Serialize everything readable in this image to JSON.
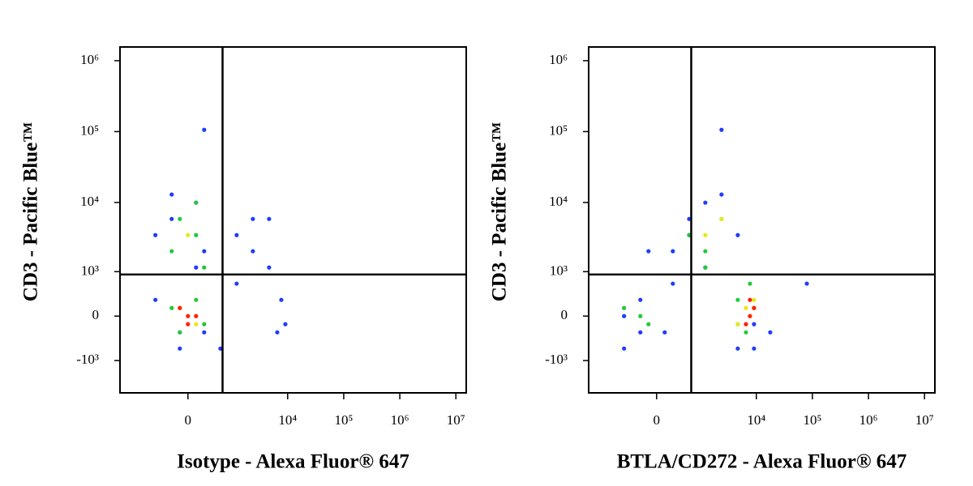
{
  "chart_data": [
    {
      "type": "scatter",
      "x_label": "Isotype - Alexa Fluor® 647",
      "y_label": "CD3 - Pacific Blue™",
      "xscale": "biexponential",
      "yscale": "biexponential",
      "xlim": [
        -2700,
        15300000
      ],
      "ylim": [
        -3000,
        1560000
      ],
      "xticks": [
        0,
        {
          "value": 10000,
          "label": "10⁴"
        },
        {
          "value": 100000,
          "label": "10⁵"
        },
        {
          "value": 1000000,
          "label": "10⁶"
        },
        {
          "value": 10000000,
          "label": "10⁷"
        }
      ],
      "yticks": [
        {
          "value": -1000,
          "label": "-10³"
        },
        0,
        {
          "value": 1000,
          "label": "10³"
        },
        {
          "value": 10000,
          "label": "10⁴"
        },
        {
          "value": 100000,
          "label": "10⁵"
        },
        {
          "value": 1000000,
          "label": "10⁶"
        }
      ],
      "gates": {
        "x": 650,
        "y": 900
      },
      "series": [
        {
          "color": "#1f3cff",
          "x": [
            -590,
            -239,
            113,
            239,
            590,
            -113,
            -590,
            239,
            1208,
            2384,
            4660,
            7700,
            6520,
            -239,
            113,
            590,
            1208,
            2384,
            -113,
            239,
            9090,
            4660
          ],
          "y": [
            3450,
            5850,
            9950,
            2025,
            -630,
            -630,
            276,
            -276,
            3450,
            5850,
            1160,
            276,
            -276,
            12950,
            1160,
            -630,
            630,
            2025,
            -276,
            106000,
            -133,
            5850
          ]
        },
        {
          "color": "#22c93a",
          "x": [
            -113,
            113,
            -239,
            239,
            -113,
            113,
            -239,
            239,
            113
          ],
          "y": [
            5850,
            3450,
            2025,
            1160,
            -276,
            276,
            133,
            -133,
            9950
          ]
        },
        {
          "color": "#e8e81a",
          "x": [
            0,
            -113,
            113
          ],
          "y": [
            3450,
            133,
            -133
          ]
        },
        {
          "color": "#ff2200",
          "x": [
            0,
            -113,
            113,
            0
          ],
          "y": [
            0,
            133,
            0,
            -133
          ]
        }
      ]
    },
    {
      "type": "scatter",
      "x_label": "BTLA/CD272 - Alexa Fluor® 647",
      "y_label": "CD3 - Pacific Blue™",
      "xscale": "biexponential",
      "yscale": "biexponential",
      "xlim": [
        -2700,
        15300000
      ],
      "ylim": [
        -3000,
        1560000
      ],
      "xticks": [
        0,
        {
          "value": 10000,
          "label": "10⁴"
        },
        {
          "value": 100000,
          "label": "10⁵"
        },
        {
          "value": 1000000,
          "label": "10⁶"
        },
        {
          "value": 10000000,
          "label": "10⁷"
        }
      ],
      "yticks": [
        {
          "value": -1000,
          "label": "-10³"
        },
        0,
        {
          "value": 1000,
          "label": "10³"
        },
        {
          "value": 10000,
          "label": "10⁴"
        },
        {
          "value": 100000,
          "label": "10⁵"
        },
        {
          "value": 1000000,
          "label": "10⁶"
        }
      ],
      "gates": {
        "x": 650,
        "y": 900
      },
      "series": [
        {
          "color": "#1f3cff",
          "x": [
            -590,
            -239,
            -590,
            113,
            239,
            590,
            1208,
            2384,
            4660,
            9090,
            17700,
            79600,
            239,
            590,
            -239,
            4660,
            9090,
            2384,
            1208,
            -113
          ],
          "y": [
            0,
            276,
            -630,
            -276,
            2025,
            5850,
            9950,
            12950,
            -630,
            -630,
            -276,
            630,
            630,
            3450,
            -276,
            3450,
            -133,
            106000,
            1160,
            2025
          ]
        },
        {
          "color": "#22c93a",
          "x": [
            -239,
            -113,
            -590,
            1208,
            590,
            2384,
            1208,
            4660,
            6520,
            9090,
            4660,
            7700
          ],
          "y": [
            0,
            -133,
            133,
            2025,
            3450,
            5850,
            1160,
            276,
            -276,
            133,
            -133,
            630
          ]
        },
        {
          "color": "#e8e81a",
          "x": [
            1208,
            2384,
            6520,
            4660,
            9090
          ],
          "y": [
            3450,
            5850,
            133,
            -133,
            276
          ]
        },
        {
          "color": "#ff2200",
          "x": [
            7700,
            6520,
            9090,
            7700
          ],
          "y": [
            0,
            -133,
            133,
            276
          ]
        }
      ]
    }
  ]
}
